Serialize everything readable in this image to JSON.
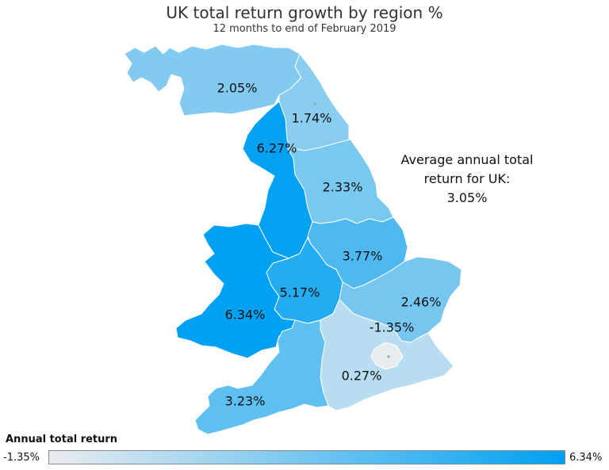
{
  "title": "UK total return growth by region %",
  "subtitle": "12 months to end of February 2019",
  "note": {
    "line1": "Average annual total",
    "line2": "return for UK:",
    "line3": "3.05%"
  },
  "regions": [
    {
      "name": "Scotland",
      "label": "2.05%",
      "value": 2.05
    },
    {
      "name": "North East",
      "label": "1.74%",
      "value": 1.74
    },
    {
      "name": "North West",
      "label": "6.27%",
      "value": 6.27
    },
    {
      "name": "Yorkshire and the Humber",
      "label": "2.33%",
      "value": 2.33
    },
    {
      "name": "East Midlands",
      "label": "3.77%",
      "value": 3.77
    },
    {
      "name": "West Midlands",
      "label": "5.17%",
      "value": 5.17
    },
    {
      "name": "Wales",
      "label": "6.34%",
      "value": 6.34
    },
    {
      "name": "East of England",
      "label": "2.46%",
      "value": 2.46
    },
    {
      "name": "London",
      "label": "-1.35%",
      "value": -1.35
    },
    {
      "name": "South East",
      "label": "0.27%",
      "value": 0.27
    },
    {
      "name": "South West",
      "label": "3.23%",
      "value": 3.23
    }
  ],
  "legend": {
    "title": "Annual total return",
    "min_label": "-1.35%",
    "max_label": "6.34%",
    "min": -1.35,
    "max": 6.34,
    "color_low": "#e9ecef",
    "color_high": "#00a0f2"
  }
}
